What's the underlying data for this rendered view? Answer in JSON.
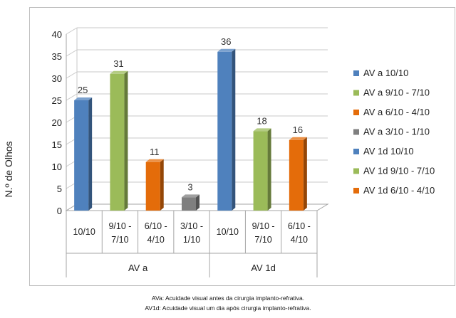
{
  "chart_data": {
    "type": "bar",
    "ylabel": "N.º de Olhos",
    "ylim": [
      0,
      40
    ],
    "yticks": [
      0,
      5,
      10,
      15,
      20,
      25,
      30,
      35,
      40
    ],
    "grid": true,
    "legend_position": "right",
    "groups": [
      {
        "name": "AV a",
        "categories": [
          "10/10",
          "9/10 - 7/10",
          "6/10 - 4/10",
          "3/10 - 1/10"
        ],
        "category_lines": [
          [
            "10/10"
          ],
          [
            "9/10 -",
            "7/10"
          ],
          [
            "6/10 -",
            "4/10"
          ],
          [
            "3/10 -",
            "1/10"
          ]
        ],
        "values": [
          25,
          31,
          11,
          3
        ],
        "colors": [
          "#4f81bd",
          "#9bbb59",
          "#e46c0a",
          "#7f7f7f"
        ]
      },
      {
        "name": "AV 1d",
        "categories": [
          "10/10",
          "9/10 - 7/10",
          "6/10 - 4/10"
        ],
        "category_lines": [
          [
            "10/10"
          ],
          [
            "9/10 -",
            "7/10"
          ],
          [
            "6/10 -",
            "4/10"
          ]
        ],
        "values": [
          36,
          18,
          16
        ],
        "colors": [
          "#4f81bd",
          "#9bbb59",
          "#e46c0a"
        ]
      }
    ],
    "legend": [
      {
        "label": "AV a 10/10",
        "color": "#4f81bd"
      },
      {
        "label": "AV a 9/10 - 7/10",
        "color": "#9bbb59"
      },
      {
        "label": "AV a 6/10 - 4/10",
        "color": "#e46c0a"
      },
      {
        "label": "AV a 3/10 - 1/10",
        "color": "#7f7f7f"
      },
      {
        "label": "AV 1d  10/10",
        "color": "#4f81bd"
      },
      {
        "label": "AV 1d  9/10 - 7/10",
        "color": "#9bbb59"
      },
      {
        "label": "AV 1d  6/10 - 4/10",
        "color": "#e46c0a"
      }
    ]
  },
  "footnotes": {
    "line1": "AVa: Acuidade visual antes da cirurgia implanto-refrativa.",
    "line2": "AV1d: Acuidade visual um dia após cirurgia implanto-refrativa."
  }
}
